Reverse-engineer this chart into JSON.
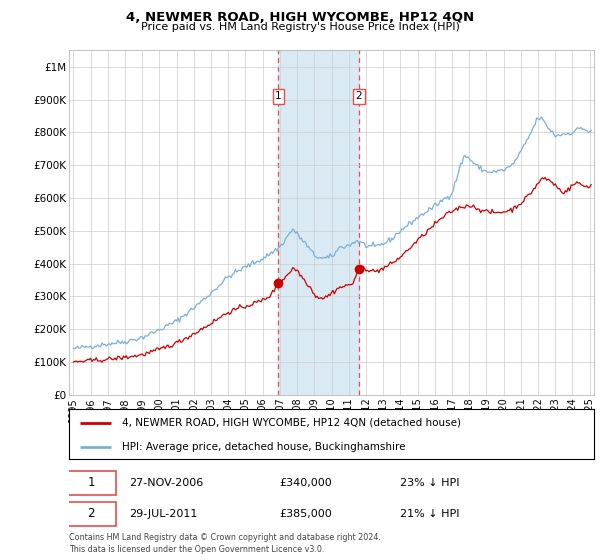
{
  "title": "4, NEWMER ROAD, HIGH WYCOMBE, HP12 4QN",
  "subtitle": "Price paid vs. HM Land Registry's House Price Index (HPI)",
  "legend_line1": "4, NEWMER ROAD, HIGH WYCOMBE, HP12 4QN (detached house)",
  "legend_line2": "HPI: Average price, detached house, Buckinghamshire",
  "footer": "Contains HM Land Registry data © Crown copyright and database right 2024.\nThis data is licensed under the Open Government Licence v3.0.",
  "transaction1_date": "27-NOV-2006",
  "transaction1_price": "£340,000",
  "transaction1_hpi": "23% ↓ HPI",
  "transaction2_date": "29-JUL-2011",
  "transaction2_price": "£385,000",
  "transaction2_hpi": "21% ↓ HPI",
  "hpi_color": "#7ab0d8",
  "price_color": "#cc0000",
  "shade_color": "#daeaf5",
  "vline_color": "#e05050",
  "background_color": "#ffffff",
  "grid_color": "#cccccc",
  "ylim": [
    0,
    1050000
  ],
  "xlim_start": 1994.75,
  "xlim_end": 2025.25,
  "transaction1_x": 2006.92,
  "transaction1_y": 340000,
  "transaction2_x": 2011.58,
  "transaction2_y": 385000
}
